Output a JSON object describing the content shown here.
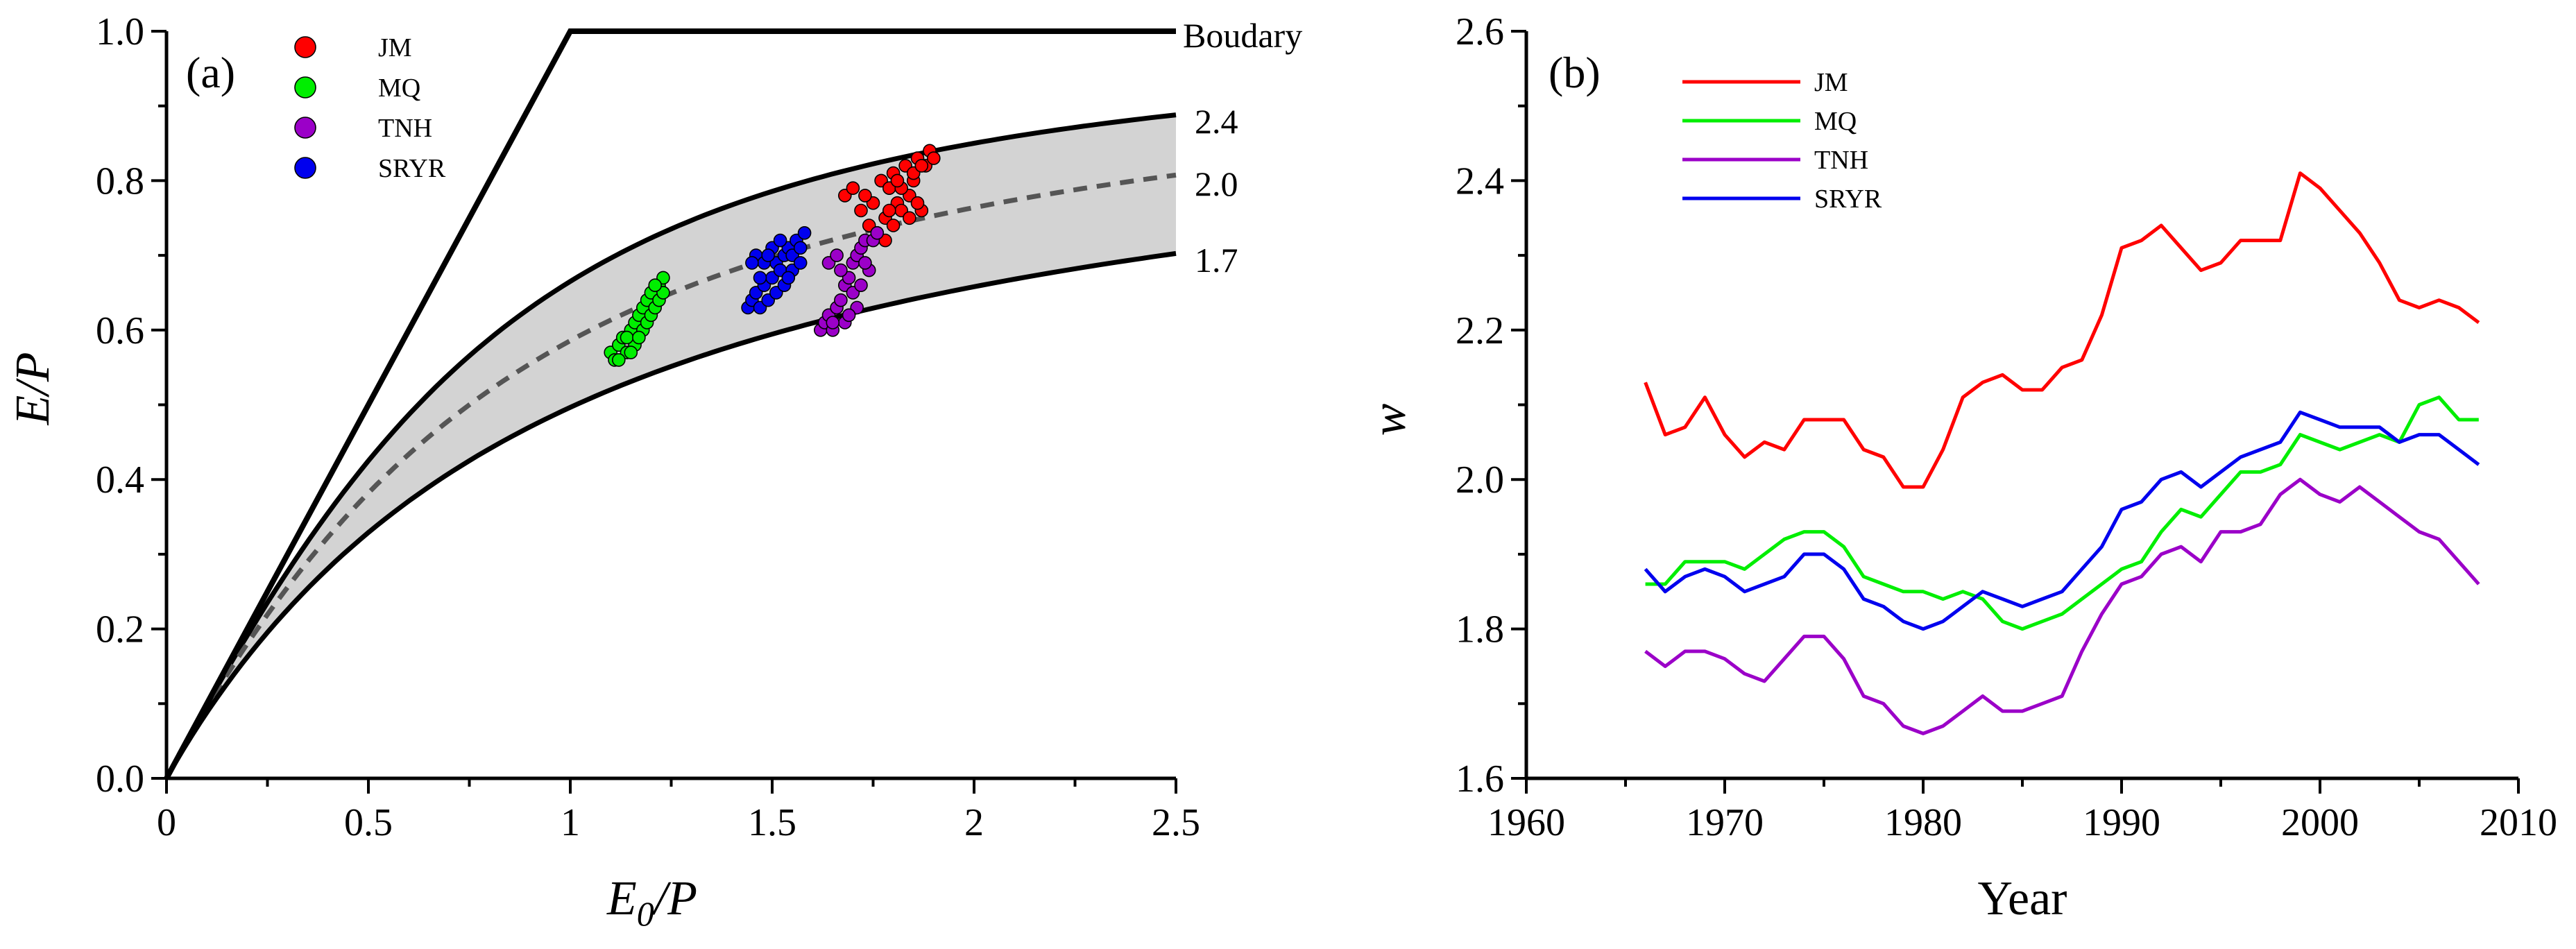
{
  "chart_data": [
    {
      "type": "scatter",
      "panel_label": "(a)",
      "xlabel_main": "E",
      "xlabel_sub": "0",
      "xlabel_tail": "/P",
      "ylabel": "E/P",
      "xlim": [
        0,
        2.5
      ],
      "ylim": [
        0,
        1.0
      ],
      "x_ticks": [
        0,
        0.5,
        1,
        1.5,
        2,
        2.5
      ],
      "x_tick_labels": [
        "0",
        "0.5",
        "1",
        "1.5",
        "2",
        "2.5"
      ],
      "y_ticks": [
        0,
        0.2,
        0.4,
        0.6,
        0.8,
        1.0
      ],
      "y_tick_labels": [
        "0.0",
        "0.2",
        "0.4",
        "0.6",
        "0.8",
        "1.0"
      ],
      "boundary_label": "Boudary",
      "curves": [
        {
          "w": 2.4,
          "label": "2.4",
          "style": "solid"
        },
        {
          "w": 2.0,
          "label": "2.0",
          "style": "dashed"
        },
        {
          "w": 1.7,
          "label": "1.7",
          "style": "solid"
        }
      ],
      "shaded_band": {
        "w_low": 1.7,
        "w_high": 2.4,
        "color": "#d3d3d3"
      },
      "series": [
        {
          "name": "JM",
          "color": "#ff0000",
          "points": [
            [
              1.68,
              0.78
            ],
            [
              1.7,
              0.79
            ],
            [
              1.72,
              0.76
            ],
            [
              1.74,
              0.74
            ],
            [
              1.75,
              0.77
            ],
            [
              1.76,
              0.73
            ],
            [
              1.77,
              0.8
            ],
            [
              1.78,
              0.75
            ],
            [
              1.79,
              0.79
            ],
            [
              1.8,
              0.81
            ],
            [
              1.81,
              0.77
            ],
            [
              1.82,
              0.76
            ],
            [
              1.83,
              0.82
            ],
            [
              1.84,
              0.78
            ],
            [
              1.85,
              0.8
            ],
            [
              1.86,
              0.83
            ],
            [
              1.87,
              0.76
            ],
            [
              1.88,
              0.82
            ],
            [
              1.89,
              0.84
            ],
            [
              1.9,
              0.83
            ],
            [
              1.78,
              0.72
            ],
            [
              1.8,
              0.74
            ],
            [
              1.82,
              0.79
            ],
            [
              1.84,
              0.75
            ],
            [
              1.86,
              0.77
            ],
            [
              1.73,
              0.78
            ],
            [
              1.79,
              0.76
            ],
            [
              1.85,
              0.81
            ],
            [
              1.81,
              0.8
            ],
            [
              1.87,
              0.82
            ]
          ]
        },
        {
          "name": "MQ",
          "color": "#00ee00",
          "points": [
            [
              1.1,
              0.57
            ],
            [
              1.11,
              0.56
            ],
            [
              1.12,
              0.58
            ],
            [
              1.13,
              0.59
            ],
            [
              1.14,
              0.57
            ],
            [
              1.15,
              0.6
            ],
            [
              1.16,
              0.61
            ],
            [
              1.16,
              0.58
            ],
            [
              1.17,
              0.62
            ],
            [
              1.18,
              0.63
            ],
            [
              1.18,
              0.6
            ],
            [
              1.19,
              0.61
            ],
            [
              1.19,
              0.64
            ],
            [
              1.2,
              0.62
            ],
            [
              1.2,
              0.65
            ],
            [
              1.21,
              0.63
            ],
            [
              1.22,
              0.66
            ],
            [
              1.22,
              0.64
            ],
            [
              1.23,
              0.67
            ],
            [
              1.23,
              0.65
            ],
            [
              1.12,
              0.56
            ],
            [
              1.14,
              0.59
            ],
            [
              1.17,
              0.59
            ],
            [
              1.21,
              0.66
            ],
            [
              1.15,
              0.57
            ]
          ]
        },
        {
          "name": "TNH",
          "color": "#9b00c8",
          "points": [
            [
              1.62,
              0.6
            ],
            [
              1.63,
              0.61
            ],
            [
              1.64,
              0.62
            ],
            [
              1.65,
              0.6
            ],
            [
              1.66,
              0.63
            ],
            [
              1.67,
              0.64
            ],
            [
              1.68,
              0.61
            ],
            [
              1.68,
              0.66
            ],
            [
              1.69,
              0.67
            ],
            [
              1.7,
              0.65
            ],
            [
              1.7,
              0.69
            ],
            [
              1.71,
              0.7
            ],
            [
              1.71,
              0.63
            ],
            [
              1.72,
              0.71
            ],
            [
              1.73,
              0.72
            ],
            [
              1.74,
              0.68
            ],
            [
              1.75,
              0.72
            ],
            [
              1.76,
              0.73
            ],
            [
              1.64,
              0.69
            ],
            [
              1.66,
              0.7
            ],
            [
              1.69,
              0.62
            ],
            [
              1.72,
              0.66
            ],
            [
              1.67,
              0.68
            ],
            [
              1.65,
              0.61
            ],
            [
              1.73,
              0.69
            ]
          ]
        },
        {
          "name": "SRYR",
          "color": "#0000ee",
          "points": [
            [
              1.44,
              0.63
            ],
            [
              1.45,
              0.64
            ],
            [
              1.46,
              0.65
            ],
            [
              1.47,
              0.63
            ],
            [
              1.48,
              0.66
            ],
            [
              1.49,
              0.64
            ],
            [
              1.5,
              0.67
            ],
            [
              1.51,
              0.65
            ],
            [
              1.51,
              0.69
            ],
            [
              1.52,
              0.68
            ],
            [
              1.53,
              0.7
            ],
            [
              1.53,
              0.66
            ],
            [
              1.54,
              0.71
            ],
            [
              1.55,
              0.7
            ],
            [
              1.56,
              0.72
            ],
            [
              1.57,
              0.71
            ],
            [
              1.58,
              0.73
            ],
            [
              1.46,
              0.7
            ],
            [
              1.48,
              0.69
            ],
            [
              1.5,
              0.71
            ],
            [
              1.52,
              0.72
            ],
            [
              1.47,
              0.67
            ],
            [
              1.55,
              0.68
            ],
            [
              1.49,
              0.7
            ],
            [
              1.57,
              0.69
            ],
            [
              1.45,
              0.69
            ],
            [
              1.54,
              0.67
            ]
          ]
        }
      ]
    },
    {
      "type": "line",
      "panel_label": "(b)",
      "xlabel": "Year",
      "ylabel": "w",
      "xlim": [
        1960,
        2010
      ],
      "ylim": [
        1.6,
        2.6
      ],
      "x_ticks": [
        1960,
        1970,
        1980,
        1990,
        2000,
        2010
      ],
      "x_tick_labels": [
        "1960",
        "1970",
        "1980",
        "1990",
        "2000",
        "2010"
      ],
      "y_ticks": [
        1.6,
        1.8,
        2.0,
        2.2,
        2.4,
        2.6
      ],
      "y_tick_labels": [
        "1.6",
        "1.8",
        "2.0",
        "2.2",
        "2.4",
        "2.6"
      ],
      "x": [
        1966,
        1967,
        1968,
        1969,
        1970,
        1971,
        1972,
        1973,
        1974,
        1975,
        1976,
        1977,
        1978,
        1979,
        1980,
        1981,
        1982,
        1983,
        1984,
        1985,
        1986,
        1987,
        1988,
        1989,
        1990,
        1991,
        1992,
        1993,
        1994,
        1995,
        1996,
        1997,
        1998,
        1999,
        2000,
        2001,
        2002,
        2003,
        2004,
        2005,
        2006,
        2007,
        2008
      ],
      "series": [
        {
          "name": "JM",
          "color": "#ff0000",
          "values": [
            2.13,
            2.06,
            2.07,
            2.11,
            2.06,
            2.03,
            2.05,
            2.04,
            2.08,
            2.08,
            2.08,
            2.04,
            2.03,
            1.99,
            1.99,
            2.04,
            2.11,
            2.13,
            2.14,
            2.12,
            2.12,
            2.15,
            2.16,
            2.22,
            2.31,
            2.32,
            2.34,
            2.31,
            2.28,
            2.29,
            2.32,
            2.32,
            2.32,
            2.41,
            2.39,
            2.36,
            2.33,
            2.29,
            2.24,
            2.23,
            2.24,
            2.23,
            2.21
          ]
        },
        {
          "name": "MQ",
          "color": "#00ee00",
          "values": [
            1.86,
            1.86,
            1.89,
            1.89,
            1.89,
            1.88,
            1.9,
            1.92,
            1.93,
            1.93,
            1.91,
            1.87,
            1.86,
            1.85,
            1.85,
            1.84,
            1.85,
            1.84,
            1.81,
            1.8,
            1.81,
            1.82,
            1.84,
            1.86,
            1.88,
            1.89,
            1.93,
            1.96,
            1.95,
            1.98,
            2.01,
            2.01,
            2.02,
            2.06,
            2.05,
            2.04,
            2.05,
            2.06,
            2.05,
            2.1,
            2.11,
            2.08,
            2.08
          ]
        },
        {
          "name": "TNH",
          "color": "#9b00c8",
          "values": [
            1.77,
            1.75,
            1.77,
            1.77,
            1.76,
            1.74,
            1.73,
            1.76,
            1.79,
            1.79,
            1.76,
            1.71,
            1.7,
            1.67,
            1.66,
            1.67,
            1.69,
            1.71,
            1.69,
            1.69,
            1.7,
            1.71,
            1.77,
            1.82,
            1.86,
            1.87,
            1.9,
            1.91,
            1.89,
            1.93,
            1.93,
            1.94,
            1.98,
            2.0,
            1.98,
            1.97,
            1.99,
            1.97,
            1.95,
            1.93,
            1.92,
            1.89,
            1.86
          ]
        },
        {
          "name": "SRYR",
          "color": "#0000ee",
          "values": [
            1.88,
            1.85,
            1.87,
            1.88,
            1.87,
            1.85,
            1.86,
            1.87,
            1.9,
            1.9,
            1.88,
            1.84,
            1.83,
            1.81,
            1.8,
            1.81,
            1.83,
            1.85,
            1.84,
            1.83,
            1.84,
            1.85,
            1.88,
            1.91,
            1.96,
            1.97,
            2.0,
            2.01,
            1.99,
            2.01,
            2.03,
            2.04,
            2.05,
            2.09,
            2.08,
            2.07,
            2.07,
            2.07,
            2.05,
            2.06,
            2.06,
            2.04,
            2.02
          ]
        }
      ]
    }
  ]
}
